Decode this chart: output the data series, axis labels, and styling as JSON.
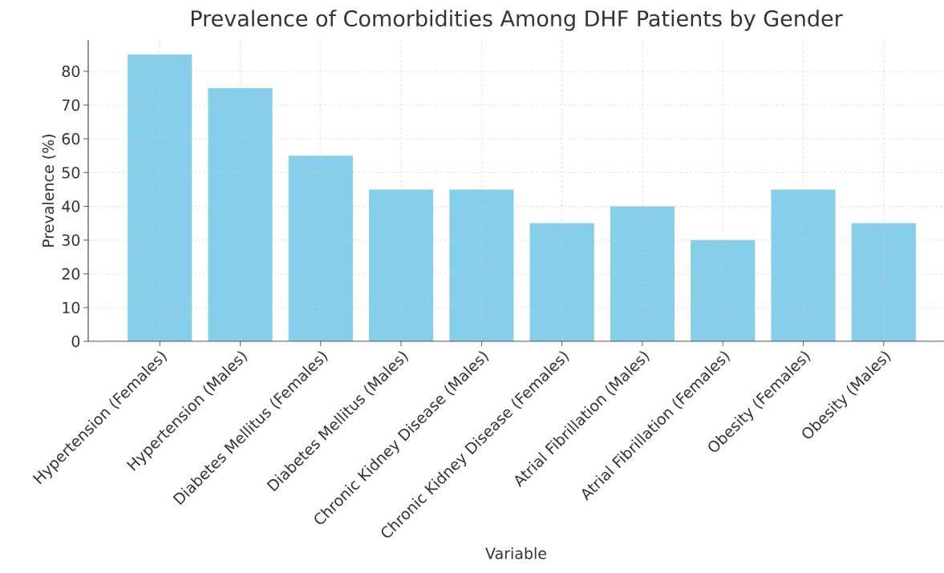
{
  "chart_data": {
    "type": "bar",
    "title": "Prevalence of Comorbidities Among DHF Patients by Gender",
    "xlabel": "Variable",
    "ylabel": "Prevalence (%)",
    "categories": [
      "Hypertension (Females)",
      "Hypertension (Males)",
      "Diabetes Mellitus (Females)",
      "Diabetes Mellitus (Males)",
      "Chronic Kidney Disease (Males)",
      "Chronic Kidney Disease (Females)",
      "Atrial Fibrillation (Males)",
      "Atrial Fibrillation (Females)",
      "Obesity (Females)",
      "Obesity (Males)"
    ],
    "values": [
      85,
      75,
      55,
      45,
      45,
      35,
      40,
      30,
      45,
      35
    ],
    "color": "#87ceeb",
    "ylim": [
      0,
      89.25
    ],
    "yticks": [
      0,
      10,
      20,
      30,
      40,
      50,
      60,
      70,
      80
    ],
    "grid": true
  }
}
